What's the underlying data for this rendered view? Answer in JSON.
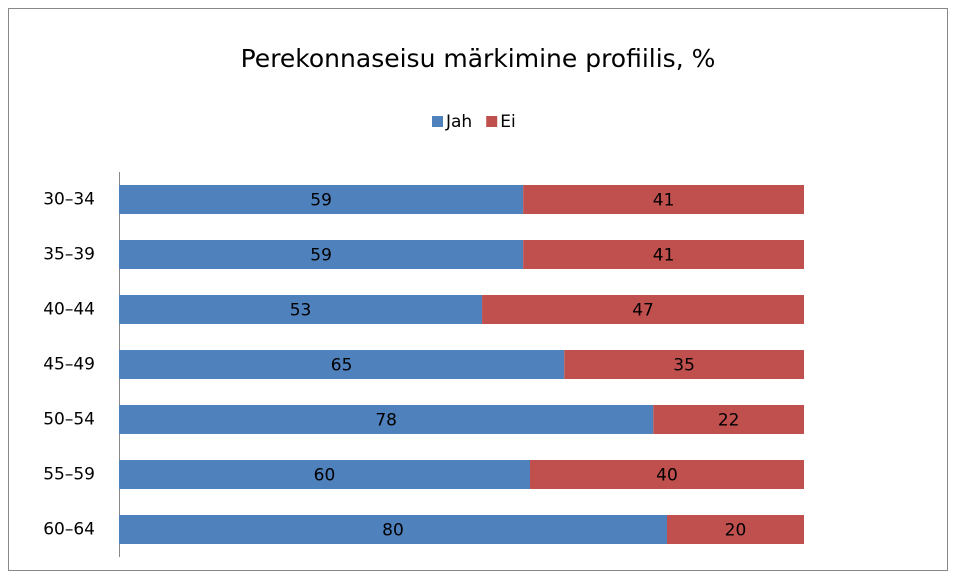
{
  "chart_data": {
    "type": "stacked_barh",
    "title": "Perekonnaseisu märkimine profiilis, %",
    "categories": [
      "30–34",
      "35–39",
      "40–44",
      "45–49",
      "50–54",
      "55–59",
      "60–64"
    ],
    "series": [
      {
        "name": "Jah",
        "color": "#4f81bd",
        "values": [
          59,
          59,
          53,
          65,
          78,
          60,
          80
        ]
      },
      {
        "name": "Ei",
        "color": "#c0504d",
        "values": [
          41,
          41,
          47,
          35,
          22,
          40,
          20
        ]
      }
    ],
    "xlim": [
      0,
      100
    ],
    "legend": "top"
  }
}
